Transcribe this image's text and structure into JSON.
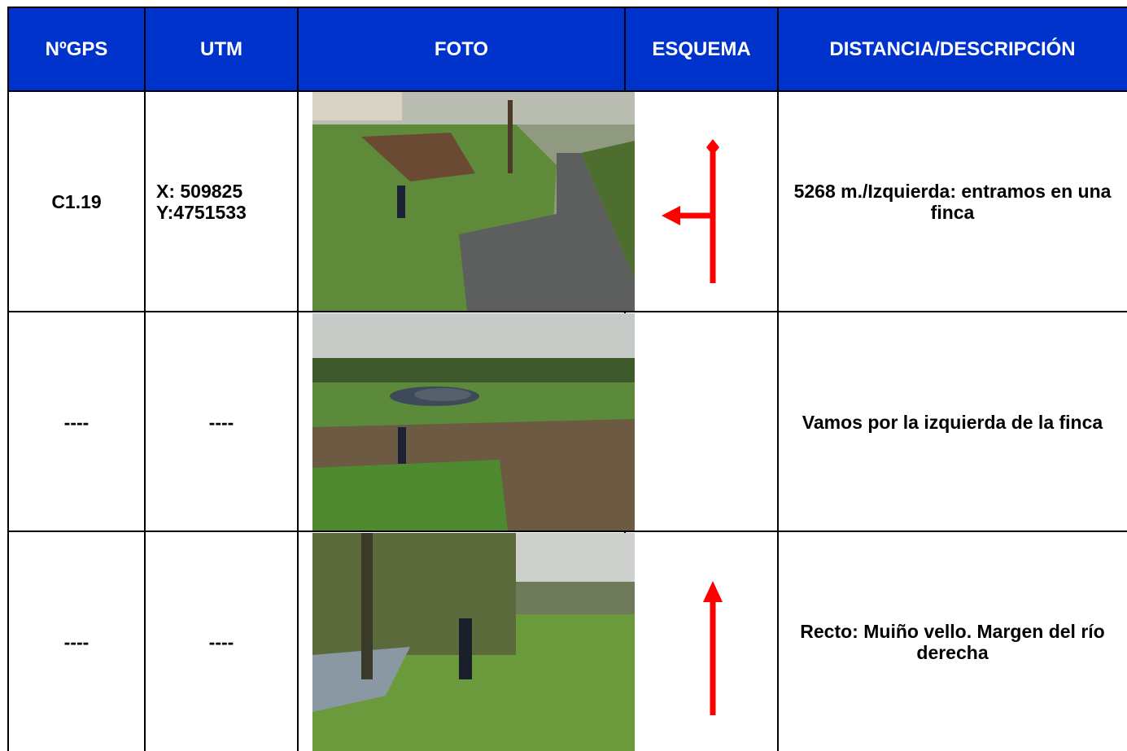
{
  "header": {
    "columns": [
      "NºGPS",
      "UTM",
      "FOTO",
      "ESQUEMA",
      "DISTANCIA/DESCRIPCIÓN"
    ]
  },
  "table": {
    "rows": [
      {
        "gps": "C1.19",
        "utm": [
          "X: 509825",
          "Y:4751533"
        ],
        "description": "5268 m./Izquierda: entramos en una finca"
      },
      {
        "gps": "----",
        "utm": [
          "----"
        ],
        "description": "Vamos por la izquierda de la finca"
      },
      {
        "gps": "----",
        "utm": [
          "----"
        ],
        "description": "Recto: Muiño vello. Margen del río derecha"
      }
    ]
  }
}
